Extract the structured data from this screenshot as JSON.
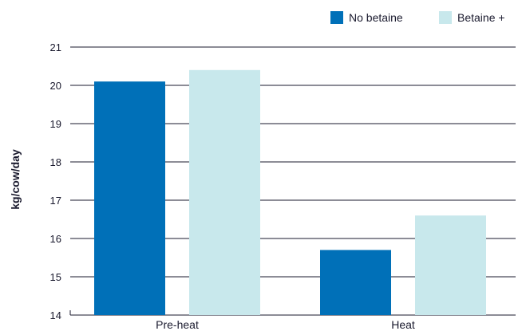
{
  "chart_data": {
    "type": "bar",
    "title": "",
    "xlabel": "",
    "ylabel": "kg/cow/day",
    "ylim": [
      14,
      21
    ],
    "yticks": [
      14,
      15,
      16,
      17,
      18,
      19,
      20,
      21
    ],
    "grid": true,
    "legend_position": "top-right",
    "categories": [
      "Pre-heat",
      "Heat"
    ],
    "series": [
      {
        "name": "No betaine",
        "color": "#0070b8",
        "values": [
          20.1,
          15.7
        ]
      },
      {
        "name": "Betaine +",
        "color": "#c8e8ec",
        "values": [
          20.4,
          16.6
        ]
      }
    ]
  }
}
